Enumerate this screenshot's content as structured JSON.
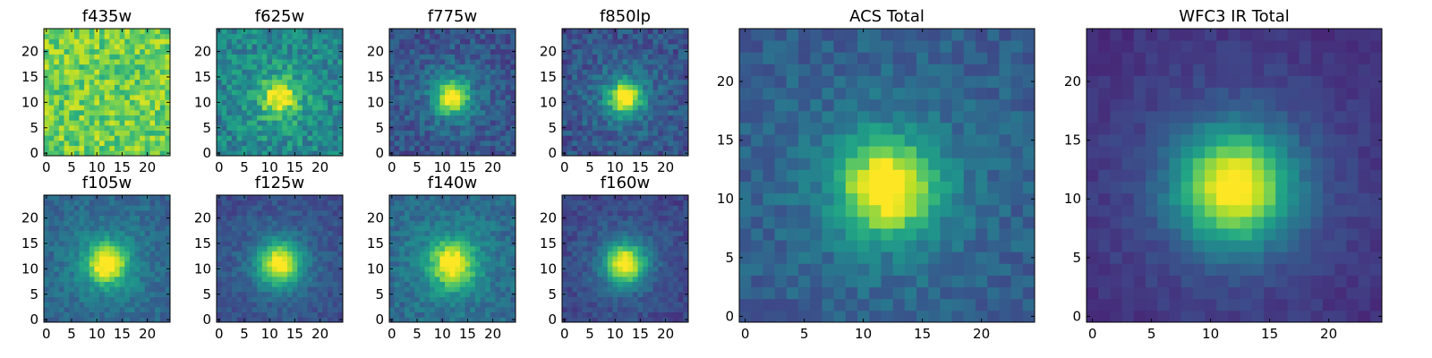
{
  "figure": {
    "colormap": "viridis",
    "source_type": "astronomical cutouts",
    "pixel_grid": 25
  },
  "chart_data": [
    {
      "type": "heatmap",
      "title": "f435w",
      "xticks": [
        "0",
        "5",
        "10",
        "15",
        "20"
      ],
      "yticks": [
        "0",
        "5",
        "10",
        "15",
        "20"
      ],
      "xlim": [
        0,
        25
      ],
      "ylim": [
        0,
        25
      ],
      "source": {
        "center": [
          12,
          11
        ],
        "width": 2.5,
        "peak": 0.0,
        "background": 0.78,
        "noise": 0.16,
        "seed": 11
      }
    },
    {
      "type": "heatmap",
      "title": "f625w",
      "xticks": [
        "0",
        "5",
        "10",
        "15",
        "20"
      ],
      "yticks": [
        "0",
        "5",
        "10",
        "15",
        "20"
      ],
      "xlim": [
        0,
        25
      ],
      "ylim": [
        0,
        25
      ],
      "source": {
        "center": [
          12,
          11
        ],
        "width": 2.2,
        "peak": 0.5,
        "background": 0.45,
        "noise": 0.15,
        "seed": 23
      }
    },
    {
      "type": "heatmap",
      "title": "f775w",
      "xticks": [
        "0",
        "5",
        "10",
        "15",
        "20"
      ],
      "yticks": [
        "0",
        "5",
        "10",
        "15",
        "20"
      ],
      "xlim": [
        0,
        25
      ],
      "ylim": [
        0,
        25
      ],
      "source": {
        "center": [
          12,
          11
        ],
        "width": 2.2,
        "peak": 0.7,
        "background": 0.25,
        "noise": 0.11,
        "seed": 37
      }
    },
    {
      "type": "heatmap",
      "title": "f850lp",
      "xticks": [
        "0",
        "5",
        "10",
        "15",
        "20"
      ],
      "yticks": [
        "0",
        "5",
        "10",
        "15",
        "20"
      ],
      "xlim": [
        0,
        25
      ],
      "ylim": [
        0,
        25
      ],
      "source": {
        "center": [
          12,
          11
        ],
        "width": 2.2,
        "peak": 0.72,
        "background": 0.25,
        "noise": 0.11,
        "seed": 41
      }
    },
    {
      "type": "heatmap",
      "title": "f105w",
      "xticks": [
        "0",
        "5",
        "10",
        "15",
        "20"
      ],
      "yticks": [
        "0",
        "5",
        "10",
        "15",
        "20"
      ],
      "xlim": [
        0,
        25
      ],
      "ylim": [
        0,
        25
      ],
      "source": {
        "center": [
          12,
          11
        ],
        "width": 2.6,
        "peak": 0.68,
        "background": 0.32,
        "noise": 0.08,
        "seed": 53
      }
    },
    {
      "type": "heatmap",
      "title": "f125w",
      "xticks": [
        "0",
        "5",
        "10",
        "15",
        "20"
      ],
      "yticks": [
        "0",
        "5",
        "10",
        "15",
        "20"
      ],
      "xlim": [
        0,
        25
      ],
      "ylim": [
        0,
        25
      ],
      "source": {
        "center": [
          12,
          11
        ],
        "width": 2.8,
        "peak": 0.7,
        "background": 0.22,
        "noise": 0.07,
        "seed": 61
      }
    },
    {
      "type": "heatmap",
      "title": "f140w",
      "xticks": [
        "0",
        "5",
        "10",
        "15",
        "20"
      ],
      "yticks": [
        "0",
        "5",
        "10",
        "15",
        "20"
      ],
      "xlim": [
        0,
        25
      ],
      "ylim": [
        0,
        25
      ],
      "source": {
        "center": [
          12,
          11
        ],
        "width": 3.0,
        "peak": 0.62,
        "background": 0.32,
        "noise": 0.09,
        "seed": 71
      }
    },
    {
      "type": "heatmap",
      "title": "f160w",
      "xticks": [
        "0",
        "5",
        "10",
        "15",
        "20"
      ],
      "yticks": [
        "0",
        "5",
        "10",
        "15",
        "20"
      ],
      "xlim": [
        0,
        25
      ],
      "ylim": [
        0,
        25
      ],
      "source": {
        "center": [
          12,
          11
        ],
        "width": 2.6,
        "peak": 0.75,
        "background": 0.2,
        "noise": 0.07,
        "seed": 83
      }
    },
    {
      "type": "heatmap",
      "title": "ACS Total",
      "xticks": [
        "0",
        "5",
        "10",
        "15",
        "20"
      ],
      "yticks": [
        "0",
        "5",
        "10",
        "15",
        "20"
      ],
      "xlim": [
        0,
        25
      ],
      "ylim": [
        0,
        25
      ],
      "source": {
        "center": [
          12,
          11
        ],
        "width": 2.6,
        "peak": 0.72,
        "background": 0.28,
        "noise": 0.08,
        "seed": 97
      }
    },
    {
      "type": "heatmap",
      "title": "WFC3 IR Total",
      "xticks": [
        "0",
        "5",
        "10",
        "15",
        "20"
      ],
      "yticks": [
        "0",
        "5",
        "10",
        "15",
        "20"
      ],
      "xlim": [
        0,
        25
      ],
      "ylim": [
        0,
        25
      ],
      "source": {
        "center": [
          12,
          11
        ],
        "width": 3.2,
        "peak": 0.82,
        "background": 0.12,
        "noise": 0.04,
        "seed": 109
      }
    }
  ]
}
